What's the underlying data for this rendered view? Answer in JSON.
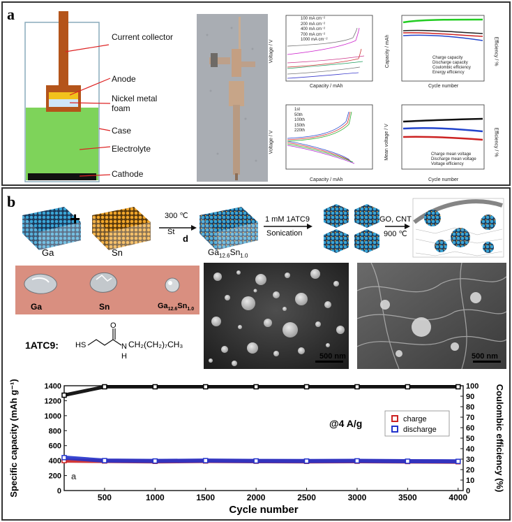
{
  "panel_a": {
    "letter": "a",
    "schematic_labels": [
      "Current collector",
      "Anode",
      "Nickel metal foam",
      "Case",
      "Electrolyte",
      "Cathode"
    ],
    "chart1": {
      "type": "line",
      "xlabel": "Capacity / mAh",
      "ylabel": "Voltage / V",
      "xticks": [
        "0",
        "50",
        "100",
        "150",
        "200",
        "250",
        "300"
      ],
      "yticks": [
        "0.0",
        "0.2",
        "0.4",
        "0.6",
        "0.8",
        "1.0",
        "1.2",
        "1.4",
        "1.6",
        "1.8",
        "2.0",
        "2.2"
      ],
      "legend": [
        "100 mA cm⁻²",
        "200 mA cm⁻²",
        "400 mA cm⁻²",
        "700 mA cm⁻²",
        "1000 mA cm⁻²"
      ]
    },
    "chart2": {
      "type": "line",
      "xlabel": "Cycle number",
      "ylabel": "Capacity / mAh",
      "y2label": "Efficiency / %",
      "xticks": [
        "0",
        "50",
        "100",
        "150",
        "200"
      ],
      "yticks": [
        "0",
        "50",
        "100",
        "150",
        "200",
        "250",
        "300"
      ],
      "y2ticks": [
        "0",
        "20",
        "40",
        "60",
        "80",
        "100"
      ],
      "legend": [
        "Charge capacity",
        "Discharge capacity",
        "Coulombic efficiency",
        "Energy efficiency"
      ]
    },
    "chart3": {
      "type": "line",
      "xlabel": "Capacity / mAh",
      "ylabel": "Voltage / V",
      "xticks": [
        "0",
        "50",
        "100",
        "150",
        "200",
        "250",
        "300",
        "350"
      ],
      "yticks": [
        "0.5",
        "0.6",
        "0.7",
        "0.8",
        "0.9",
        "1.0",
        "1.1",
        "1.2"
      ],
      "legend": [
        "1st",
        "50th",
        "100th",
        "150th",
        "220th"
      ]
    },
    "chart4": {
      "type": "line",
      "xlabel": "Cycle number",
      "ylabel": "Mean voltage / V",
      "y2label": "Efficiency / %",
      "xticks": [
        "0",
        "50",
        "100",
        "150",
        "200"
      ],
      "yticks": [
        "0.0",
        "0.2",
        "0.4",
        "0.6",
        "0.8",
        "1.0"
      ],
      "y2ticks": [
        "0",
        "20",
        "40",
        "60",
        "80",
        "100"
      ],
      "legend": [
        "Charge mean voltage",
        "Discharge mean voltage",
        "Voltage efficiency"
      ]
    }
  },
  "panel_b": {
    "letter": "b",
    "scheme": {
      "ga": "Ga",
      "sn": "Sn",
      "plus": "+",
      "step1_top": "300 ℃",
      "step1_bottom": "St",
      "stray_d": "d",
      "alloy_main": "Ga",
      "alloy_sub1": "12.6",
      "alloy_mid": "Sn",
      "alloy_sub2": "1.0",
      "step2_top": "1 mM 1ATC9",
      "step2_bottom": "Sonication",
      "step3_top": "GO, CNT",
      "step3_bottom": "900 ℃"
    },
    "photo_labels": {
      "ga": "Ga",
      "sn": "Sn",
      "alloy_main": "Ga",
      "alloy_sub1": "12.6",
      "alloy_mid": "Sn",
      "alloy_sub2": "1.0"
    },
    "molecule": {
      "name": "1ATC9:",
      "sh": "HS",
      "o": "O",
      "nh": "N",
      "h": "H",
      "tail": "CH₂(CH₂)₇CH₃"
    },
    "sem1_scale": "500 nm",
    "sem2_scale": "500 nm",
    "chart_bottom": {
      "stray_a": "a",
      "annotation": "@4 A/g"
    }
  },
  "chart_data": [
    {
      "type": "line",
      "ylabel": "Specific capacity (mAh g⁻¹)",
      "y2label": "Coulombic efficiency (%)",
      "xlabel": "Cycle number",
      "xlim": [
        100,
        4050
      ],
      "ylim": [
        0,
        1400
      ],
      "y2lim": [
        0,
        100
      ],
      "xticks": [
        500,
        1000,
        1500,
        2000,
        2500,
        3000,
        3500,
        4000
      ],
      "yticks": [
        0,
        200,
        400,
        600,
        800,
        1000,
        1200,
        1400
      ],
      "y2ticks": [
        0,
        10,
        20,
        30,
        40,
        50,
        60,
        70,
        80,
        90,
        100
      ],
      "legend_position": "right",
      "series": [
        {
          "name": "charge",
          "color": "#cc2222",
          "axis": "left",
          "x": [
            100,
            500,
            1000,
            1500,
            2000,
            2500,
            3000,
            3500,
            4000
          ],
          "values": [
            400,
            395,
            390,
            395,
            392,
            390,
            392,
            388,
            385
          ]
        },
        {
          "name": "discharge",
          "color": "#2233cc",
          "axis": "left",
          "x": [
            100,
            500,
            1000,
            1500,
            2000,
            2500,
            3000,
            3500,
            4000
          ],
          "values": [
            440,
            400,
            395,
            400,
            396,
            394,
            397,
            392,
            390
          ]
        },
        {
          "name": "",
          "color": "#000000",
          "axis": "right",
          "x": [
            100,
            500,
            1000,
            1500,
            2000,
            2500,
            3000,
            3500,
            4000
          ],
          "values": [
            91,
            99,
            99,
            99,
            99,
            99,
            99,
            99,
            99
          ]
        }
      ]
    }
  ]
}
